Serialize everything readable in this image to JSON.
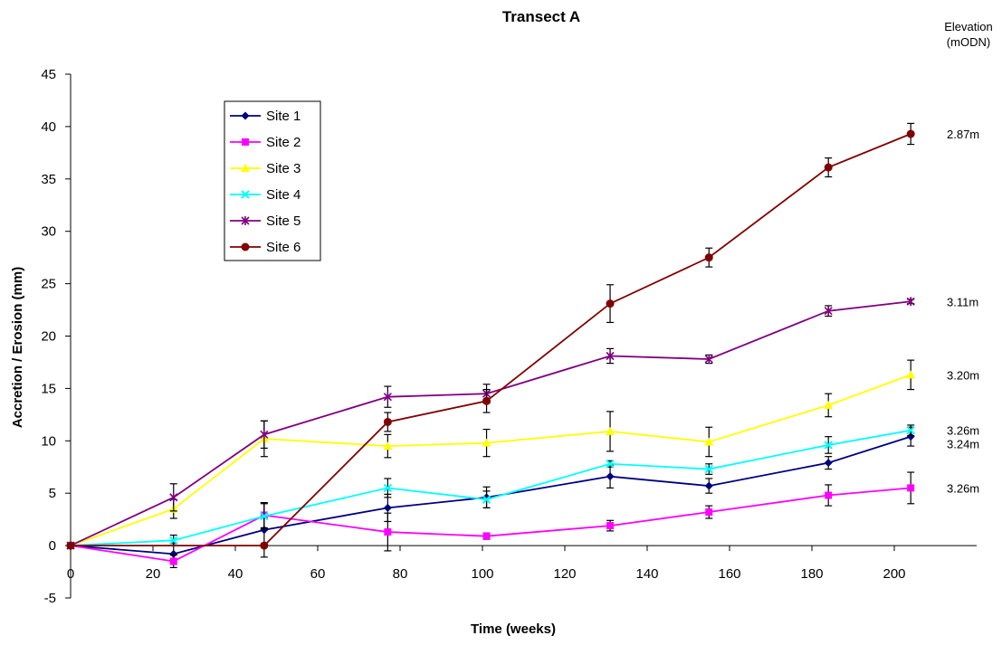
{
  "chart_data": {
    "type": "line",
    "title": "Transect A",
    "xlabel": "Time (weeks)",
    "ylabel": "Accretion / Erosion (mm)",
    "xlim": [
      0,
      220
    ],
    "ylim": [
      -5,
      45
    ],
    "x_ticks": [
      0,
      20,
      40,
      60,
      80,
      100,
      120,
      140,
      160,
      180,
      200
    ],
    "y_ticks": [
      -5,
      0,
      5,
      10,
      15,
      20,
      25,
      30,
      35,
      40,
      45
    ],
    "grid": false,
    "legend_position": "upper-left",
    "elevation_header": [
      "Elevation",
      "(mODN)"
    ],
    "series": [
      {
        "name": "Site 1",
        "color": "#000080",
        "marker": "diamond",
        "elevation_label": "3.24m",
        "x": [
          0,
          25,
          47,
          77,
          101,
          131,
          155,
          184,
          204
        ],
        "values": [
          0,
          -0.8,
          1.5,
          3.6,
          4.6,
          6.6,
          5.7,
          7.9,
          10.4
        ],
        "errors": [
          0,
          1.0,
          2.6,
          1.3,
          1.0,
          1.1,
          0.7,
          0.6,
          0.9
        ]
      },
      {
        "name": "Site 2",
        "color": "#FF00FF",
        "marker": "square",
        "elevation_label": "3.26m",
        "x": [
          0,
          25,
          47,
          77,
          101,
          131,
          155,
          184,
          204
        ],
        "values": [
          0,
          -1.5,
          2.9,
          1.3,
          0.9,
          1.9,
          3.2,
          4.8,
          5.5
        ],
        "errors": [
          0,
          0.6,
          1.2,
          1.8,
          0.3,
          0.5,
          0.6,
          1.0,
          1.5
        ]
      },
      {
        "name": "Site 3",
        "color": "#FFFF00",
        "marker": "triangle",
        "elevation_label": "3.20m",
        "x": [
          0,
          25,
          47,
          77,
          101,
          131,
          155,
          184,
          204
        ],
        "values": [
          0,
          3.5,
          10.2,
          9.5,
          9.8,
          10.9,
          9.9,
          13.4,
          16.3
        ],
        "errors": [
          0,
          0.9,
          1.7,
          1.1,
          1.3,
          1.9,
          1.4,
          1.1,
          1.4
        ]
      },
      {
        "name": "Site 4",
        "color": "#00FFFF",
        "marker": "x",
        "elevation_label": "3.26m",
        "x": [
          0,
          25,
          47,
          77,
          101,
          131,
          155,
          184,
          204
        ],
        "values": [
          0,
          0.5,
          2.8,
          5.5,
          4.4,
          7.8,
          7.3,
          9.6,
          11.0
        ],
        "errors": [
          0,
          0.5,
          1.2,
          0.9,
          0.8,
          0.3,
          0.5,
          0.8,
          0.5
        ]
      },
      {
        "name": "Site 5",
        "color": "#800080",
        "marker": "star",
        "elevation_label": "3.11m",
        "x": [
          0,
          25,
          47,
          77,
          101,
          131,
          155,
          184,
          204
        ],
        "values": [
          0,
          4.6,
          10.6,
          14.2,
          14.5,
          18.1,
          17.8,
          22.4,
          23.3
        ],
        "errors": [
          0,
          1.3,
          1.3,
          1.0,
          0.9,
          0.7,
          0.4,
          0.5,
          0.2
        ]
      },
      {
        "name": "Site 6",
        "color": "#800000",
        "marker": "circle",
        "elevation_label": "2.87m",
        "x": [
          0,
          47,
          77,
          101,
          131,
          155,
          184,
          204
        ],
        "values": [
          0,
          0,
          11.8,
          13.8,
          23.1,
          27.5,
          36.1,
          39.3
        ],
        "errors": [
          0,
          0,
          0.9,
          1.1,
          1.8,
          0.9,
          0.9,
          1.0
        ]
      }
    ]
  }
}
